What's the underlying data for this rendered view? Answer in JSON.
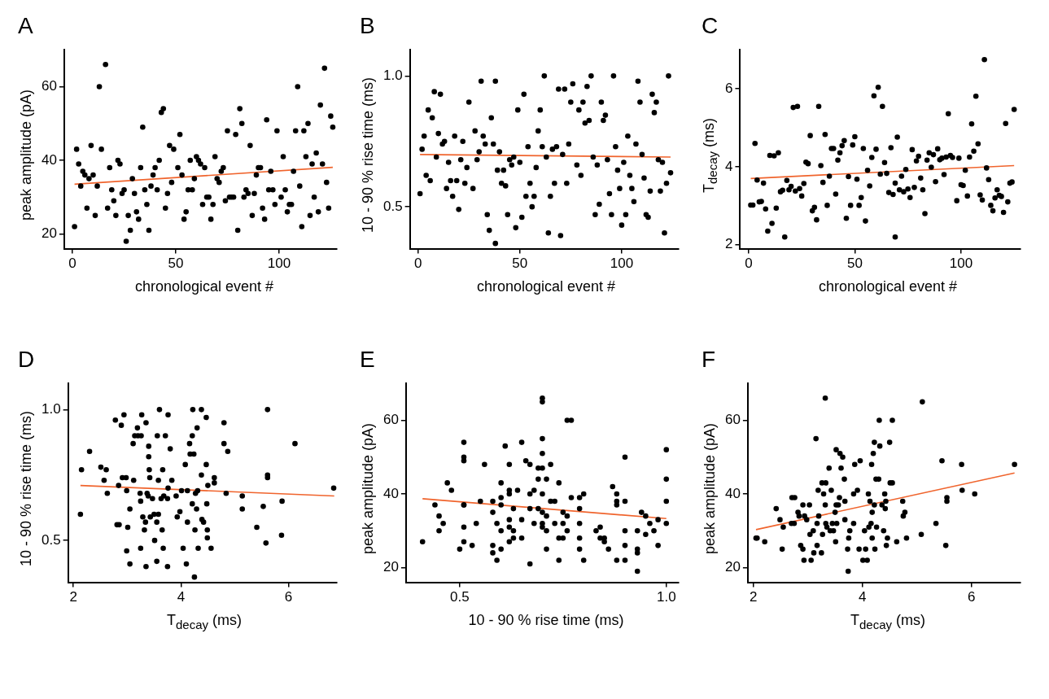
{
  "chart_data": [
    {
      "type": "scatter",
      "title": "A",
      "xlabel": "chronological event #",
      "ylabel": "peak amplitude (pA)",
      "xlim": [
        -4,
        128
      ],
      "xticks": [
        0,
        50,
        100
      ],
      "ylim": [
        16,
        70
      ],
      "yticks": [
        20,
        40,
        60
      ],
      "marker": "circle",
      "series": [
        {
          "color": "#000000",
          "x": [
            1,
            2,
            3,
            4,
            5,
            6,
            7,
            8,
            9,
            10,
            11,
            12,
            13,
            14,
            16,
            17,
            18,
            19,
            20,
            21,
            22,
            23,
            24,
            25,
            26,
            27,
            28,
            29,
            30,
            31,
            32,
            33,
            34,
            35,
            36,
            37,
            38,
            39,
            40,
            41,
            42,
            43,
            44,
            45,
            46,
            47,
            48,
            49,
            51,
            52,
            53,
            54,
            55,
            56,
            57,
            58,
            59,
            60,
            61,
            62,
            63,
            64,
            65,
            66,
            67,
            68,
            69,
            70,
            71,
            72,
            73,
            74,
            75,
            76,
            77,
            78,
            79,
            80,
            81,
            82,
            83,
            84,
            85,
            86,
            87,
            88,
            89,
            90,
            91,
            92,
            93,
            94,
            95,
            96,
            97,
            98,
            99,
            101,
            102,
            103,
            104,
            105,
            106,
            107,
            108,
            109,
            110,
            111,
            112,
            113,
            114,
            115,
            116,
            117,
            118,
            119,
            120,
            121,
            122,
            123,
            124,
            125,
            126
          ],
          "values": [
            22,
            43,
            39,
            33,
            37,
            36,
            27,
            35,
            44,
            36,
            25,
            33,
            60,
            43,
            66,
            27,
            38,
            32,
            29,
            25,
            40,
            39,
            31,
            32,
            18,
            25,
            21,
            35,
            31,
            26,
            24,
            38,
            49,
            32,
            28,
            21,
            33,
            36,
            38,
            32,
            40,
            53,
            54,
            27,
            31,
            44,
            34,
            43,
            38,
            47,
            36,
            24,
            26,
            32,
            40,
            32,
            35,
            41,
            40,
            39,
            28,
            38,
            30,
            30,
            24,
            28,
            41,
            35,
            34,
            37,
            38,
            29,
            48,
            30,
            30,
            30,
            47,
            21,
            54,
            50,
            30,
            32,
            31,
            44,
            25,
            31,
            36,
            38,
            38,
            27,
            24,
            51,
            32,
            37,
            32,
            28,
            48,
            30,
            41,
            32,
            26,
            28,
            28,
            37,
            48,
            60,
            33,
            22,
            48,
            41,
            50,
            25,
            39,
            30,
            42,
            26,
            55,
            39,
            65,
            34,
            27,
            52,
            49
          ]
        },
        {
          "type": "line",
          "marker": "none",
          "color": "#f0642d",
          "x": [
            1,
            126
          ],
          "values": [
            33.5,
            38.1
          ]
        }
      ]
    },
    {
      "type": "scatter",
      "title": "B",
      "xlabel": "chronological event #",
      "ylabel": "10 - 90 % rise time (ms)",
      "xlim": [
        -4,
        128
      ],
      "xticks": [
        0,
        50,
        100
      ],
      "ylim": [
        0.34,
        1.1
      ],
      "yticks": [
        0.5,
        {
          "value": 1,
          "label": "1.0"
        }
      ],
      "marker": "circle",
      "series": [
        {
          "color": "#000000",
          "x": [
            1,
            2,
            3,
            4,
            5,
            6,
            7,
            8,
            9,
            10,
            11,
            12,
            13,
            14,
            15,
            16,
            17,
            18,
            19,
            20,
            21,
            22,
            23,
            24,
            25,
            27,
            28,
            29,
            30,
            31,
            32,
            33,
            34,
            35,
            36,
            37,
            38,
            39,
            40,
            41,
            42,
            43,
            44,
            45,
            46,
            47,
            48,
            49,
            50,
            51,
            52,
            53,
            54,
            55,
            56,
            57,
            58,
            59,
            60,
            61,
            62,
            63,
            64,
            65,
            66,
            67,
            68,
            69,
            70,
            71,
            72,
            73,
            74,
            75,
            76,
            78,
            79,
            80,
            81,
            82,
            83,
            84,
            85,
            86,
            87,
            88,
            89,
            90,
            91,
            92,
            93,
            94,
            95,
            96,
            97,
            98,
            99,
            100,
            101,
            102,
            103,
            104,
            105,
            106,
            107,
            108,
            109,
            110,
            111,
            112,
            113,
            114,
            115,
            116,
            117,
            118,
            119,
            120,
            121,
            122,
            123,
            124,
            38
          ],
          "values": [
            0.55,
            0.72,
            0.77,
            0.62,
            0.87,
            0.6,
            0.84,
            0.94,
            0.69,
            0.78,
            0.93,
            0.74,
            0.75,
            0.57,
            0.67,
            0.6,
            0.54,
            0.77,
            0.6,
            0.49,
            0.68,
            0.75,
            0.59,
            0.65,
            0.9,
            0.57,
            0.79,
            0.68,
            0.71,
            0.98,
            0.77,
            0.74,
            0.47,
            0.41,
            0.84,
            0.74,
            0.98,
            0.64,
            0.71,
            0.59,
            0.64,
            0.58,
            0.47,
            0.68,
            0.66,
            0.69,
            0.42,
            0.87,
            0.67,
            0.46,
            0.93,
            0.54,
            0.73,
            0.59,
            0.5,
            0.54,
            0.65,
            0.79,
            0.87,
            0.73,
            1.0,
            0.69,
            0.4,
            0.54,
            0.72,
            0.59,
            0.73,
            0.95,
            0.39,
            0.7,
            0.95,
            0.59,
            0.74,
            0.9,
            0.97,
            0.66,
            0.87,
            0.62,
            0.9,
            0.82,
            0.96,
            0.83,
            1.0,
            0.69,
            0.47,
            0.66,
            0.51,
            0.9,
            0.83,
            0.85,
            0.68,
            0.55,
            0.47,
            1.0,
            0.73,
            0.64,
            0.57,
            0.43,
            0.67,
            0.47,
            0.77,
            0.62,
            0.57,
            0.52,
            0.74,
            0.98,
            0.9,
            0.7,
            0.61,
            0.47,
            0.46,
            0.56,
            0.93,
            0.86,
            0.9,
            0.68,
            0.56,
            0.67,
            0.4,
            0.59,
            1.0,
            0.63,
            0.36
          ]
        },
        {
          "type": "line",
          "marker": "none",
          "color": "#f0642d",
          "x": [
            1,
            124
          ],
          "values": [
            0.7,
            0.69
          ]
        }
      ]
    },
    {
      "type": "scatter",
      "title": "C",
      "xlabel": "chronological event #",
      "ylabel": "T$_{decay}$ (ms)",
      "xlim": [
        -4,
        128
      ],
      "xticks": [
        0,
        50,
        100
      ],
      "ylim": [
        1.9,
        7
      ],
      "yticks": [
        2,
        4,
        6
      ],
      "marker": "circle",
      "series": [
        {
          "color": "#000000",
          "x": [
            1,
            2,
            3,
            4,
            5,
            6,
            7,
            8,
            10,
            11,
            12,
            13,
            14,
            15,
            16,
            18,
            19,
            20,
            21,
            22,
            23,
            24,
            25,
            26,
            27,
            28,
            29,
            30,
            31,
            32,
            33,
            34,
            35,
            36,
            37,
            38,
            39,
            40,
            41,
            42,
            43,
            44,
            45,
            46,
            47,
            48,
            49,
            50,
            51,
            52,
            53,
            54,
            55,
            56,
            57,
            58,
            59,
            60,
            61,
            62,
            63,
            64,
            65,
            66,
            67,
            68,
            69,
            70,
            71,
            72,
            73,
            74,
            75,
            76,
            77,
            78,
            79,
            80,
            81,
            82,
            83,
            84,
            85,
            86,
            87,
            88,
            89,
            90,
            91,
            92,
            93,
            94,
            95,
            96,
            98,
            99,
            100,
            101,
            102,
            103,
            104,
            105,
            106,
            107,
            108,
            109,
            110,
            111,
            112,
            113,
            114,
            115,
            116,
            117,
            118,
            119,
            120,
            121,
            122,
            123,
            124,
            125,
            9,
            17,
            69
          ],
          "values": [
            3.02,
            3.02,
            4.6,
            3.66,
            3.1,
            3.11,
            3.58,
            2.92,
            4.29,
            2.55,
            4.28,
            2.94,
            4.36,
            3.36,
            3.4,
            3.65,
            3.41,
            3.5,
            5.52,
            3.38,
            5.55,
            3.44,
            3.25,
            3.57,
            4.12,
            4.08,
            4.8,
            2.87,
            2.96,
            2.64,
            5.55,
            4.03,
            3.6,
            4.83,
            3.01,
            3.76,
            4.47,
            4.47,
            3.3,
            4.17,
            4.36,
            4.54,
            4.67,
            2.68,
            3.75,
            3.01,
            4.56,
            4.77,
            3.68,
            3.01,
            3.21,
            4.47,
            2.61,
            3.91,
            3.51,
            4.24,
            5.82,
            4.45,
            6.04,
            3.81,
            5.55,
            4.11,
            3.83,
            3.34,
            4.49,
            3.29,
            3.58,
            4.76,
            3.41,
            3.76,
            3.36,
            3.93,
            3.43,
            3.21,
            4.44,
            3.47,
            4.15,
            4.27,
            3.71,
            3.41,
            2.8,
            4.17,
            4.36,
            3.99,
            4.31,
            3.62,
            4.46,
            4.18,
            4.22,
            3.8,
            4.25,
            5.36,
            4.29,
            4.24,
            3.13,
            4.22,
            3.54,
            3.52,
            3.91,
            3.25,
            4.25,
            5.1,
            4.4,
            5.81,
            4.59,
            3.28,
            3.15,
            6.75,
            3.97,
            3.67,
            3.01,
            2.87,
            3.2,
            3.41,
            3.27,
            3.24,
            2.83,
            5.11,
            3.1,
            3.58,
            3.61,
            5.47,
            2.35,
            2.2,
            2.2
          ]
        },
        {
          "type": "line",
          "marker": "none",
          "color": "#f0642d",
          "x": [
            1,
            125
          ],
          "values": [
            3.7,
            4.03
          ]
        }
      ]
    },
    {
      "type": "scatter",
      "title": "D",
      "xlabel": "T$_{decay}$ (ms)",
      "ylabel": "10 - 90 % rise time (ms)",
      "xlim": [
        1.9,
        6.9
      ],
      "xticks": [
        2,
        4,
        6
      ],
      "ylim": [
        0.34,
        1.1
      ],
      "yticks": [
        0.5,
        {
          "value": 1,
          "label": "1.0"
        }
      ],
      "marker": "circle",
      "series": [
        {
          "color": "#000000",
          "x": [
            2.13,
            2.15,
            2.3,
            2.51,
            2.57,
            2.61,
            2.63,
            2.78,
            2.81,
            2.85,
            2.84,
            2.89,
            2.91,
            2.94,
            2.98,
            2.99,
            3.01,
            2.99,
            3.05,
            3.11,
            3.12,
            3.14,
            3.19,
            3.2,
            3.24,
            3.25,
            3.25,
            3.27,
            3.29,
            3.26,
            3.32,
            3.34,
            3.35,
            3.37,
            3.39,
            3.4,
            3.4,
            3.41,
            3.42,
            3.43,
            3.47,
            3.5,
            3.51,
            3.55,
            3.56,
            3.58,
            3.58,
            3.6,
            3.63,
            3.65,
            3.66,
            3.67,
            3.68,
            3.71,
            3.75,
            3.76,
            3.76,
            3.8,
            3.83,
            3.91,
            3.93,
            3.98,
            4.01,
            4.04,
            4.08,
            4.12,
            4.12,
            4.16,
            4.17,
            4.21,
            4.21,
            4.22,
            4.24,
            4.26,
            4.27,
            4.29,
            4.3,
            4.31,
            4.32,
            4.38,
            4.38,
            4.39,
            4.42,
            4.47,
            4.47,
            4.48,
            4.49,
            4.49,
            4.5,
            4.56,
            4.62,
            4.62,
            4.8,
            4.8,
            4.84,
            4.87,
            5.14,
            5.14,
            5.41,
            5.53,
            5.58,
            5.61,
            5.61,
            5.61,
            5.87,
            5.88,
            6.12,
            6.84,
            3.05,
            3.35,
            3.55,
            3.75,
            4.1,
            4.25
          ],
          "values": [
            0.6,
            0.77,
            0.84,
            0.78,
            0.73,
            0.77,
            0.68,
            0.96,
            0.56,
            0.56,
            0.71,
            0.94,
            0.74,
            0.98,
            0.74,
            0.69,
            0.55,
            0.46,
            0.62,
            0.87,
            0.73,
            0.9,
            0.93,
            0.9,
            0.68,
            0.65,
            0.47,
            0.98,
            0.59,
            0.9,
            0.54,
            0.57,
            0.95,
            0.68,
            0.67,
            0.86,
            0.82,
            0.77,
            0.74,
            0.59,
            0.66,
            0.6,
            0.5,
            0.57,
            0.9,
            0.73,
            0.6,
            1.0,
            0.66,
            0.54,
            0.77,
            0.47,
            0.67,
            0.9,
            0.66,
            0.98,
            0.7,
            0.85,
            0.73,
            0.67,
            0.59,
            0.61,
            0.69,
            0.47,
            0.79,
            0.69,
            0.57,
            0.87,
            0.83,
            0.9,
            0.64,
            1.0,
            0.83,
            0.54,
            0.68,
            0.62,
            0.93,
            0.69,
            0.47,
            1.0,
            0.75,
            0.58,
            0.57,
            0.97,
            0.79,
            0.64,
            0.51,
            0.54,
            0.71,
            0.47,
            0.74,
            0.72,
            0.95,
            0.87,
            0.68,
            0.84,
            0.67,
            0.62,
            0.55,
            0.63,
            0.49,
            1.0,
            0.75,
            0.74,
            0.52,
            0.65,
            0.87,
            0.7,
            0.41,
            0.4,
            0.42,
            0.4,
            0.41,
            0.36
          ]
        },
        {
          "type": "line",
          "marker": "none",
          "color": "#f0642d",
          "x": [
            2.13,
            6.85
          ],
          "values": [
            0.71,
            0.67
          ]
        }
      ]
    },
    {
      "type": "scatter",
      "title": "E",
      "xlabel": "10 - 90 % rise time (ms)",
      "ylabel": "peak amplitude (pA)",
      "xlim": [
        0.37,
        1.03
      ],
      "xticks": [
        0.5,
        {
          "value": 1,
          "label": "1.0"
        }
      ],
      "ylim": [
        16,
        70
      ],
      "yticks": [
        20,
        40,
        60
      ],
      "marker": "circle",
      "series": [
        {
          "color": "#000000",
          "x": [
            0.41,
            0.44,
            0.45,
            0.45,
            0.46,
            0.47,
            0.48,
            0.5,
            0.51,
            0.51,
            0.51,
            0.51,
            0.51,
            0.51,
            0.51,
            0.53,
            0.54,
            0.55,
            0.56,
            0.58,
            0.58,
            0.58,
            0.58,
            0.59,
            0.59,
            0.6,
            0.6,
            0.6,
            0.6,
            0.6,
            0.61,
            0.62,
            0.62,
            0.62,
            0.62,
            0.62,
            0.62,
            0.63,
            0.63,
            0.63,
            0.64,
            0.65,
            0.65,
            0.65,
            0.66,
            0.67,
            0.67,
            0.67,
            0.68,
            0.68,
            0.69,
            0.69,
            0.69,
            0.7,
            0.7,
            0.7,
            0.7,
            0.7,
            0.7,
            0.7,
            0.7,
            0.7,
            0.71,
            0.71,
            0.71,
            0.71,
            0.72,
            0.72,
            0.73,
            0.73,
            0.74,
            0.74,
            0.75,
            0.75,
            0.75,
            0.76,
            0.76,
            0.76,
            0.77,
            0.77,
            0.79,
            0.79,
            0.79,
            0.79,
            0.79,
            0.8,
            0.8,
            0.83,
            0.84,
            0.84,
            0.85,
            0.85,
            0.86,
            0.87,
            0.88,
            0.88,
            0.88,
            0.88,
            0.9,
            0.9,
            0.9,
            0.9,
            0.9,
            0.93,
            0.93,
            0.93,
            0.94,
            0.95,
            0.95,
            0.96,
            0.97,
            0.98,
            0.98,
            1.0,
            1.0,
            1.0,
            1.0,
            0.93,
            0.67,
            0.74
          ],
          "values": [
            27,
            37,
            34,
            30,
            32,
            43,
            41,
            25,
            37,
            37,
            54,
            50,
            49,
            31,
            27,
            26,
            32,
            38,
            48,
            38,
            35,
            26,
            24,
            32,
            22,
            39,
            37,
            43,
            30,
            25,
            53,
            41,
            40,
            48,
            33,
            31,
            27,
            36,
            30,
            28,
            41,
            54,
            33,
            28,
            49,
            48,
            36,
            40,
            41,
            32,
            44,
            36,
            47,
            66,
            65,
            47,
            32,
            55,
            51,
            40,
            35,
            31,
            44,
            34,
            30,
            25,
            48,
            38,
            38,
            32,
            43,
            28,
            32,
            35,
            28,
            34,
            30,
            60,
            60,
            39,
            39,
            32,
            28,
            25,
            36,
            40,
            22,
            30,
            31,
            28,
            28,
            27,
            25,
            42,
            40,
            38,
            37,
            22,
            50,
            38,
            30,
            26,
            22,
            30,
            25,
            24,
            35,
            34,
            29,
            32,
            30,
            33,
            26,
            52,
            44,
            38,
            32,
            19,
            21,
            22
          ]
        },
        {
          "type": "line",
          "marker": "none",
          "color": "#f0642d",
          "x": [
            0.41,
            1.0
          ],
          "values": [
            38.7,
            33.3
          ]
        }
      ]
    },
    {
      "type": "scatter",
      "title": "F",
      "xlabel": "T$_{decay}$ (ms)",
      "ylabel": "peak amplitude (pA)",
      "xlim": [
        1.9,
        6.9
      ],
      "xticks": [
        2,
        4,
        6
      ],
      "ylim": [
        16,
        70
      ],
      "yticks": [
        20,
        40,
        60
      ],
      "marker": "circle",
      "series": [
        {
          "color": "#000000",
          "x": [
            2.05,
            2.07,
            2.21,
            2.42,
            2.49,
            2.53,
            2.55,
            2.7,
            2.71,
            2.76,
            2.75,
            2.82,
            2.84,
            2.87,
            2.91,
            2.91,
            2.94,
            2.93,
            2.98,
            3.03,
            3.04,
            3.06,
            3.1,
            3.11,
            3.15,
            3.17,
            3.17,
            3.19,
            3.2,
            3.25,
            3.26,
            3.27,
            3.29,
            3.32,
            3.32,
            3.33,
            3.33,
            3.35,
            3.39,
            3.41,
            3.43,
            3.45,
            3.47,
            3.5,
            3.51,
            3.52,
            3.52,
            3.53,
            3.56,
            3.58,
            3.59,
            3.61,
            3.64,
            3.67,
            3.68,
            3.68,
            3.73,
            3.75,
            3.77,
            3.84,
            3.84,
            3.86,
            3.91,
            3.94,
            3.96,
            4.01,
            4.04,
            4.06,
            4.09,
            4.11,
            4.12,
            4.14,
            4.16,
            4.17,
            4.18,
            4.18,
            4.2,
            4.22,
            4.22,
            4.23,
            4.25,
            4.26,
            4.3,
            4.31,
            4.32,
            4.36,
            4.39,
            4.41,
            4.42,
            4.43,
            4.44,
            4.46,
            4.5,
            4.51,
            4.55,
            4.55,
            4.63,
            4.74,
            4.75,
            4.78,
            4.81,
            5.08,
            5.1,
            5.35,
            5.46,
            5.53,
            5.55,
            5.55,
            5.82,
            5.83,
            6.06,
            6.79,
            3.74
          ],
          "values": [
            28,
            28,
            27,
            36,
            33,
            25,
            31,
            32,
            39,
            39,
            32,
            35,
            34,
            26,
            37,
            25,
            34,
            22,
            33,
            37,
            29,
            22,
            30,
            24,
            55,
            32,
            26,
            41,
            34,
            24,
            43,
            29,
            40,
            66,
            37,
            43,
            32,
            31,
            47,
            30,
            41,
            32,
            30,
            35,
            27,
            37,
            52,
            32,
            37,
            39,
            51,
            47,
            50,
            44,
            38,
            33,
            25,
            28,
            30,
            32,
            40,
            48,
            41,
            25,
            49,
            22,
            30,
            25,
            22,
            40,
            31,
            38,
            32,
            48,
            35,
            28,
            51,
            54,
            37,
            25,
            44,
            31,
            44,
            60,
            53,
            37,
            30,
            40,
            36,
            38,
            26,
            28,
            54,
            43,
            60,
            43,
            27,
            38,
            34,
            35,
            28,
            29,
            65,
            32,
            49,
            26,
            39,
            38,
            48,
            41,
            40,
            48,
            19
          ]
        },
        {
          "type": "line",
          "marker": "none",
          "color": "#f0642d",
          "x": [
            2.05,
            6.79
          ],
          "values": [
            30.3,
            45.7
          ]
        }
      ]
    }
  ]
}
